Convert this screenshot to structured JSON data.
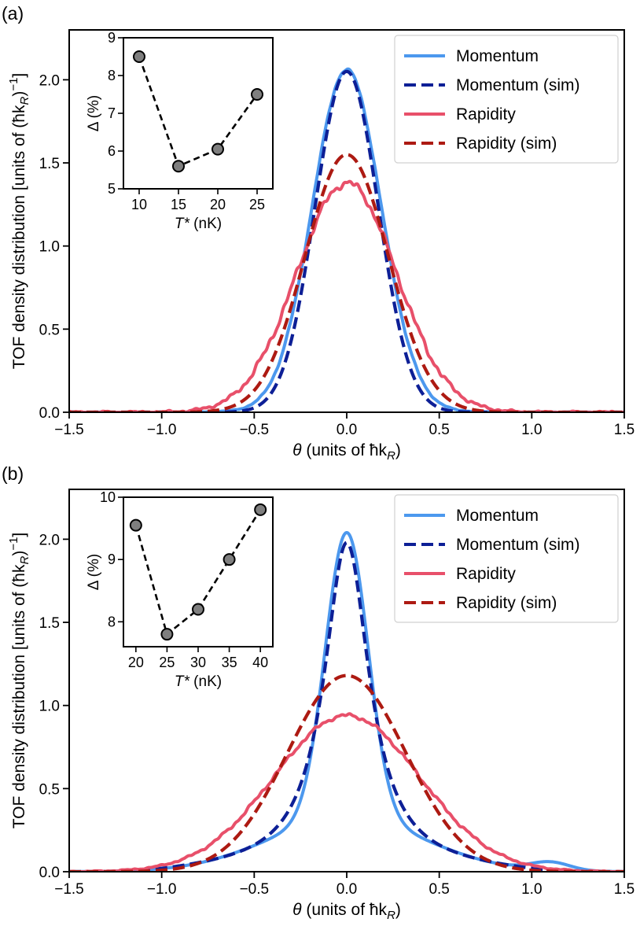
{
  "figure": {
    "panels": [
      "(a)",
      "(b)"
    ]
  },
  "colors": {
    "momentum": "#4c98ee",
    "momentum_sim": "#0d1f96",
    "rapidity": "#e8506a",
    "rapidity_sim": "#ad1a12",
    "inset_marker": "#7f7f7f"
  },
  "chart_data": [
    {
      "type": "line",
      "panel": "(a)",
      "xlabel_prefix": "θ",
      "xlabel_text": " (units of ħk",
      "xlabel_sub": "R",
      "xlabel_end": ")",
      "ylabel": "TOF density distribution [units of (ħk",
      "ylabel_sub": "R",
      "ylabel_end": ")",
      "ylabel_sup": "−1",
      "ylabel_close": "]",
      "xlim": [
        -1.5,
        1.5
      ],
      "ylim": [
        0,
        2.3
      ],
      "xticks": [
        -1.5,
        -1.0,
        -0.5,
        0.0,
        0.5,
        1.0,
        1.5
      ],
      "xtick_labels": [
        "−1.5",
        "−1.0",
        "−0.5",
        "0.0",
        "0.5",
        "1.0",
        "1.5"
      ],
      "yticks": [
        0,
        0.5,
        1.0,
        1.5,
        2.0
      ],
      "ytick_labels": [
        "0.0",
        "0.5",
        "1.0",
        "1.5",
        "2.0"
      ],
      "legend": [
        "Momentum",
        "Momentum (sim)",
        "Rapidity",
        "Rapidity (sim)"
      ],
      "series": [
        {
          "name": "Momentum",
          "model": "gauss",
          "amp": 2.05,
          "sigma": 0.185,
          "tail": 0.012,
          "tailsigma": 0.4,
          "noise": 0.008,
          "dash": false
        },
        {
          "name": "Momentum (sim)",
          "model": "gauss",
          "amp": 2.05,
          "sigma": 0.17,
          "dash": true
        },
        {
          "name": "Rapidity",
          "model": "gauss",
          "amp": 1.38,
          "sigma": 0.27,
          "noise": 0.025,
          "dash": false
        },
        {
          "name": "Rapidity (sim)",
          "model": "gauss",
          "amp": 1.55,
          "sigma": 0.225,
          "dash": true
        }
      ],
      "inset": {
        "type": "scatter",
        "x": [
          10,
          15,
          20,
          25
        ],
        "y": [
          8.5,
          5.6,
          6.05,
          7.5
        ],
        "xlim": [
          8,
          27
        ],
        "ylim": [
          5,
          9
        ],
        "xticks": [
          10,
          15,
          20,
          25
        ],
        "yticks": [
          5,
          6,
          7,
          8,
          9
        ],
        "xlabel_var": "T*",
        "xlabel_unit": " (nK)",
        "ylabel": "Δ (%)"
      }
    },
    {
      "type": "line",
      "panel": "(b)",
      "xlabel_prefix": "θ",
      "xlabel_text": " (units of ħk",
      "xlabel_sub": "R",
      "xlabel_end": ")",
      "ylabel": "TOF density distribution [units of (ħk",
      "ylabel_sub": "R",
      "ylabel_end": ")",
      "ylabel_sup": "−1",
      "ylabel_close": "]",
      "xlim": [
        -1.5,
        1.5
      ],
      "ylim": [
        0,
        2.3
      ],
      "xticks": [
        -1.5,
        -1.0,
        -0.5,
        0.0,
        0.5,
        1.0,
        1.5
      ],
      "xtick_labels": [
        "−1.5",
        "−1.0",
        "−0.5",
        "0.0",
        "0.5",
        "1.0",
        "1.5"
      ],
      "yticks": [
        0,
        0.5,
        1.0,
        1.5,
        2.0
      ],
      "ytick_labels": [
        "0.0",
        "0.5",
        "1.0",
        "1.5",
        "2.0"
      ],
      "legend": [
        "Momentum",
        "Momentum (sim)",
        "Rapidity",
        "Rapidity (sim)"
      ],
      "series": [
        {
          "name": "Momentum",
          "model": "momb",
          "dash": false
        },
        {
          "name": "Momentum (sim)",
          "model": "lorentz",
          "amp": 1.98,
          "gamma": 0.15,
          "dash": true
        },
        {
          "name": "Rapidity",
          "model": "gauss",
          "amp": 0.94,
          "sigma": 0.395,
          "noise": 0.012,
          "dash": false
        },
        {
          "name": "Rapidity (sim)",
          "model": "gauss",
          "amp": 1.18,
          "sigma": 0.32,
          "dash": true
        }
      ],
      "inset": {
        "type": "scatter",
        "x": [
          20,
          25,
          30,
          35,
          40
        ],
        "y": [
          9.55,
          7.8,
          8.2,
          9.0,
          9.8
        ],
        "xlim": [
          18,
          42
        ],
        "ylim": [
          7.6,
          10
        ],
        "xticks": [
          20,
          25,
          30,
          35,
          40
        ],
        "yticks": [
          8,
          9,
          10
        ],
        "xlabel_var": "T*",
        "xlabel_unit": " (nK)",
        "ylabel": "Δ (%)"
      }
    }
  ]
}
